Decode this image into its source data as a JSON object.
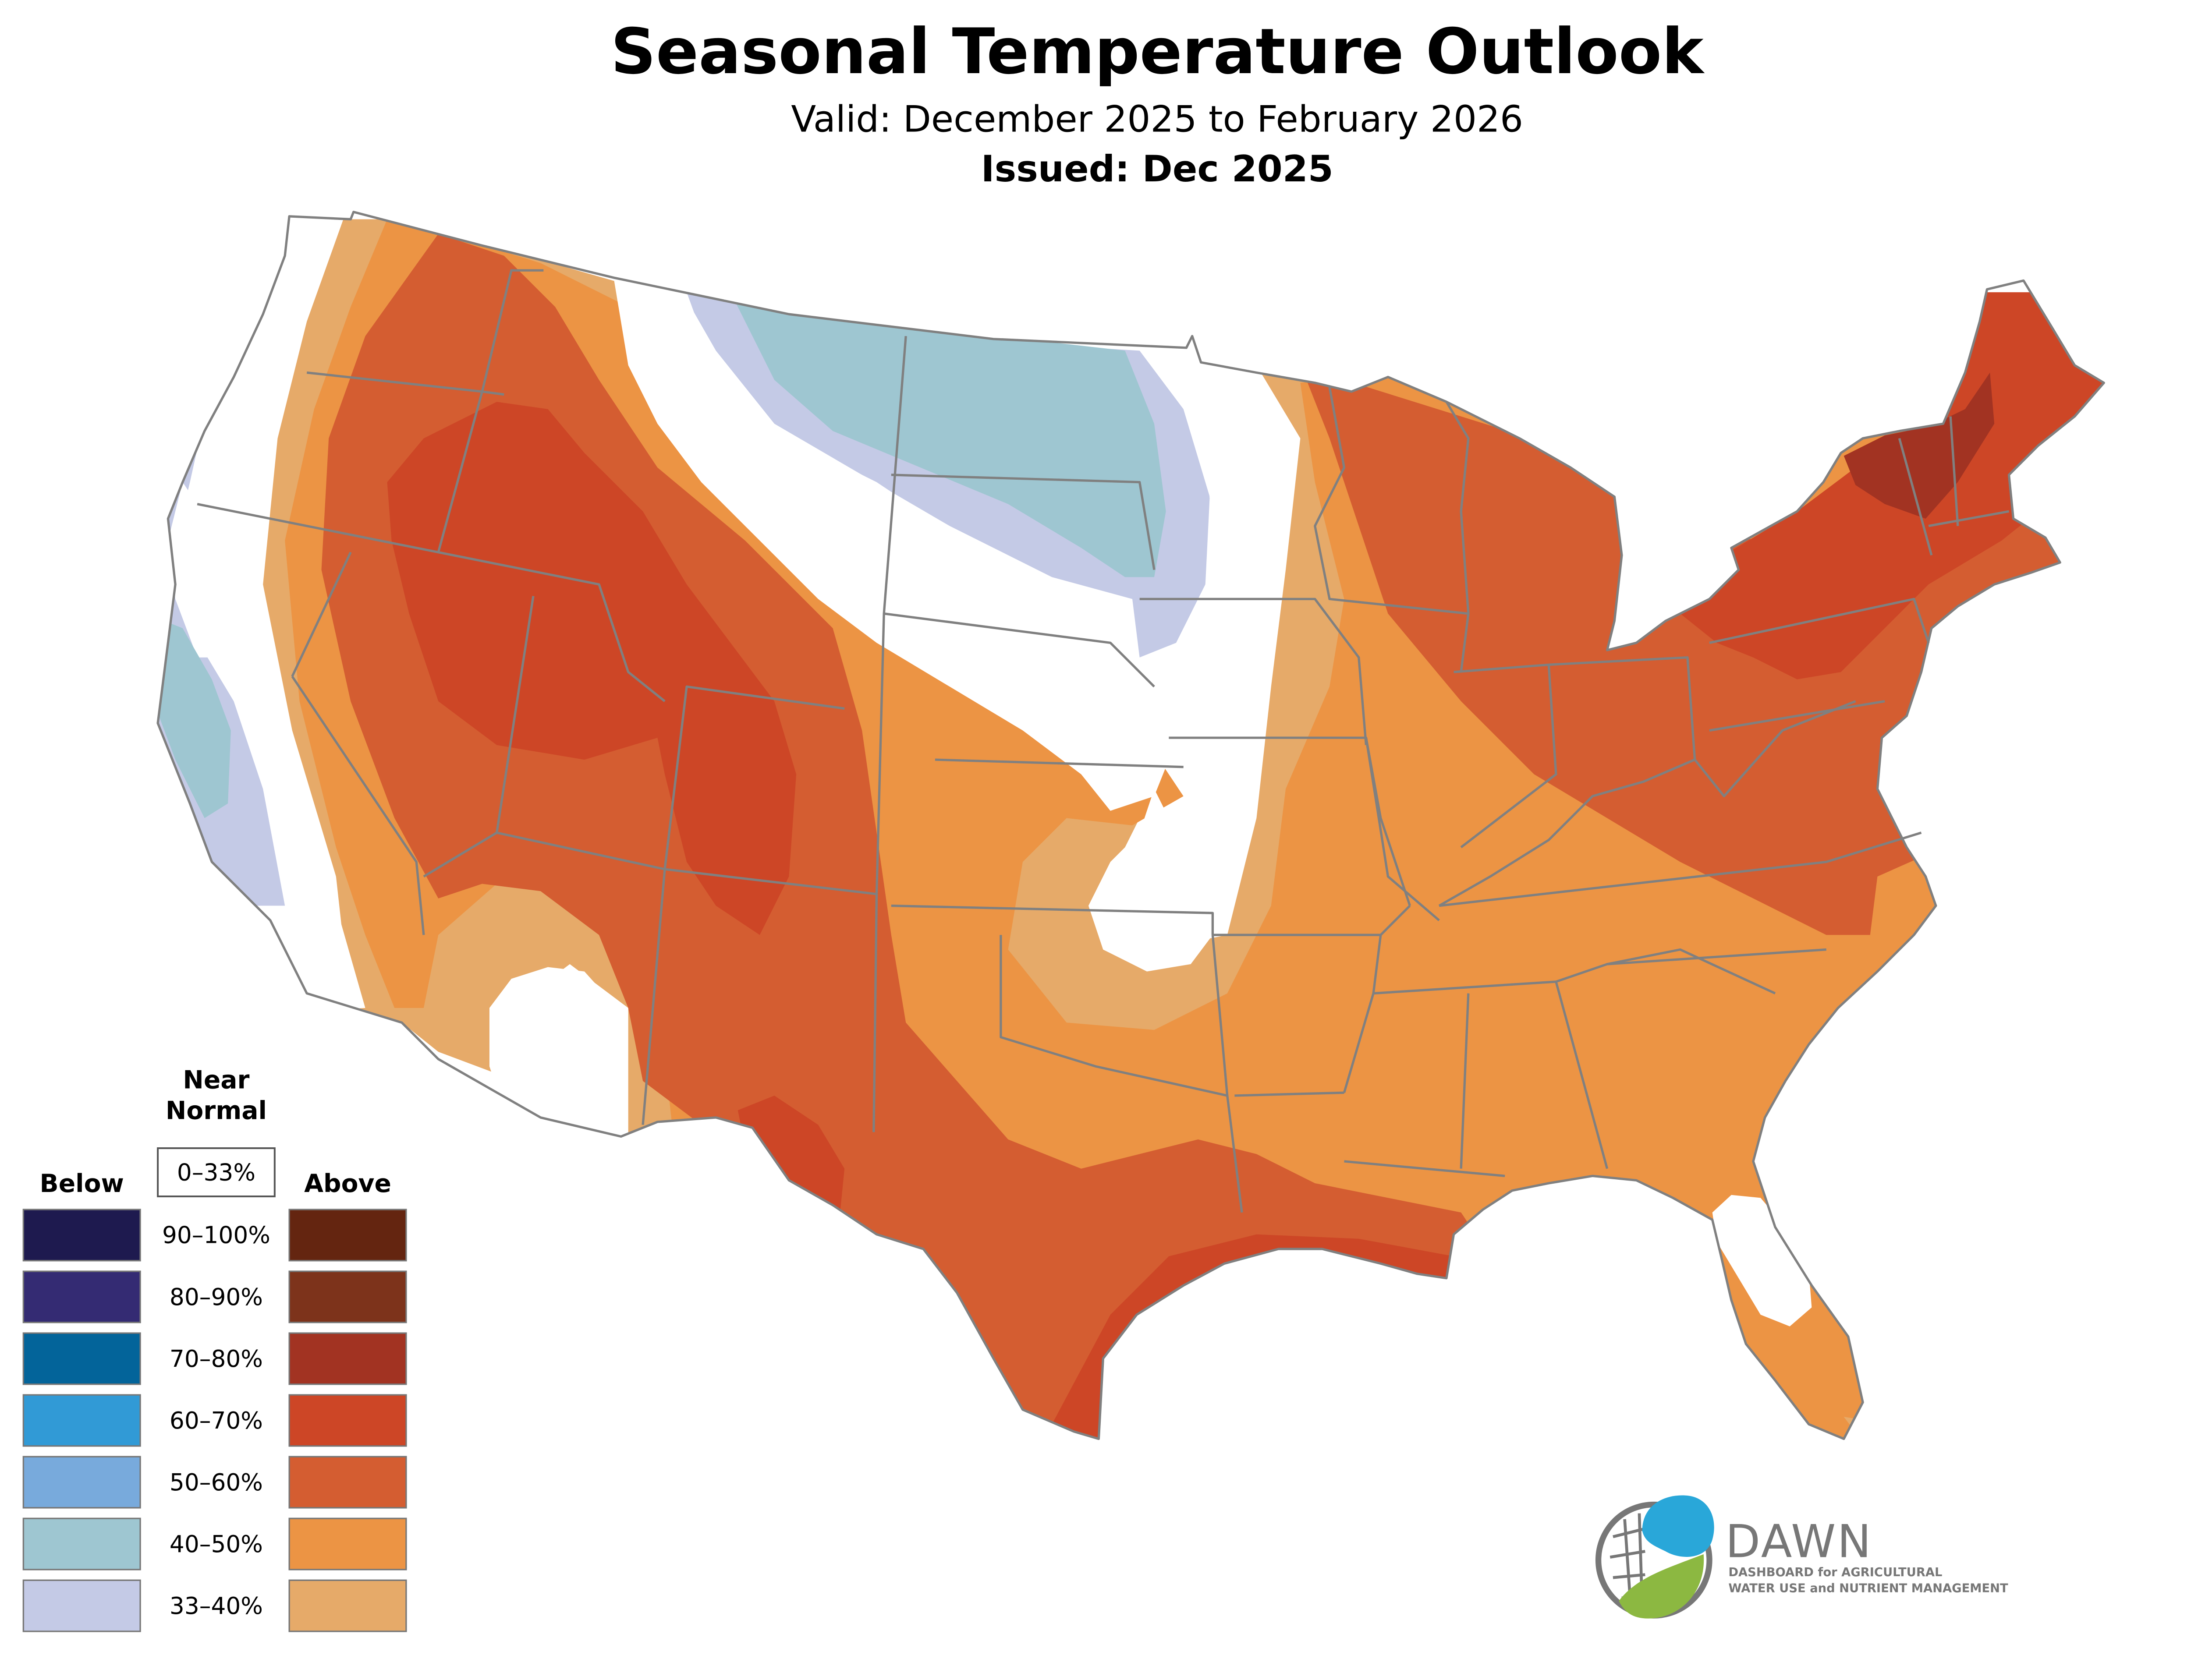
{
  "title": "Seasonal Temperature Outlook",
  "subtitle": "Valid: December 2025 to February 2026",
  "issued": "Issued: Dec 2025",
  "legend": {
    "near_normal_line1": "Near",
    "near_normal_line2": "Normal",
    "near_normal_range": "0–33%",
    "below_label": "Below",
    "above_label": "Above",
    "rows": [
      {
        "range": "90–100%",
        "below_color": "#1e1a4f",
        "above_color": "#642510"
      },
      {
        "range": "80–90%",
        "below_color": "#342b73",
        "above_color": "#7d331b"
      },
      {
        "range": "70–80%",
        "below_color": "#03649a",
        "above_color": "#a23322"
      },
      {
        "range": "60–70%",
        "below_color": "#319ad6",
        "above_color": "#cd4626"
      },
      {
        "range": "50–60%",
        "below_color": "#78aadc",
        "above_color": "#d45d31"
      },
      {
        "range": "40–50%",
        "below_color": "#9ec6d1",
        "above_color": "#ec9444"
      },
      {
        "range": "33–40%",
        "below_color": "#c4cae6",
        "above_color": "#e6aa69"
      }
    ]
  },
  "colors": {
    "above_33_40": "#e6aa69",
    "above_40_50": "#ec9444",
    "above_50_60": "#d45d31",
    "above_60_70": "#cd4626",
    "above_70_80": "#a23322",
    "below_33_40": "#c4cae6",
    "below_40_50": "#9ec6d1",
    "normal": "#ffffff",
    "border": "#808080"
  },
  "logo": {
    "name": "DAWN",
    "tagline_line1": "DASHBOARD for AGRICULTURAL",
    "tagline_line2": "WATER USE and NUTRIENT MANAGEMENT",
    "color_blue": "#29a7d9",
    "color_green": "#8cb841",
    "color_gray": "#777777"
  }
}
